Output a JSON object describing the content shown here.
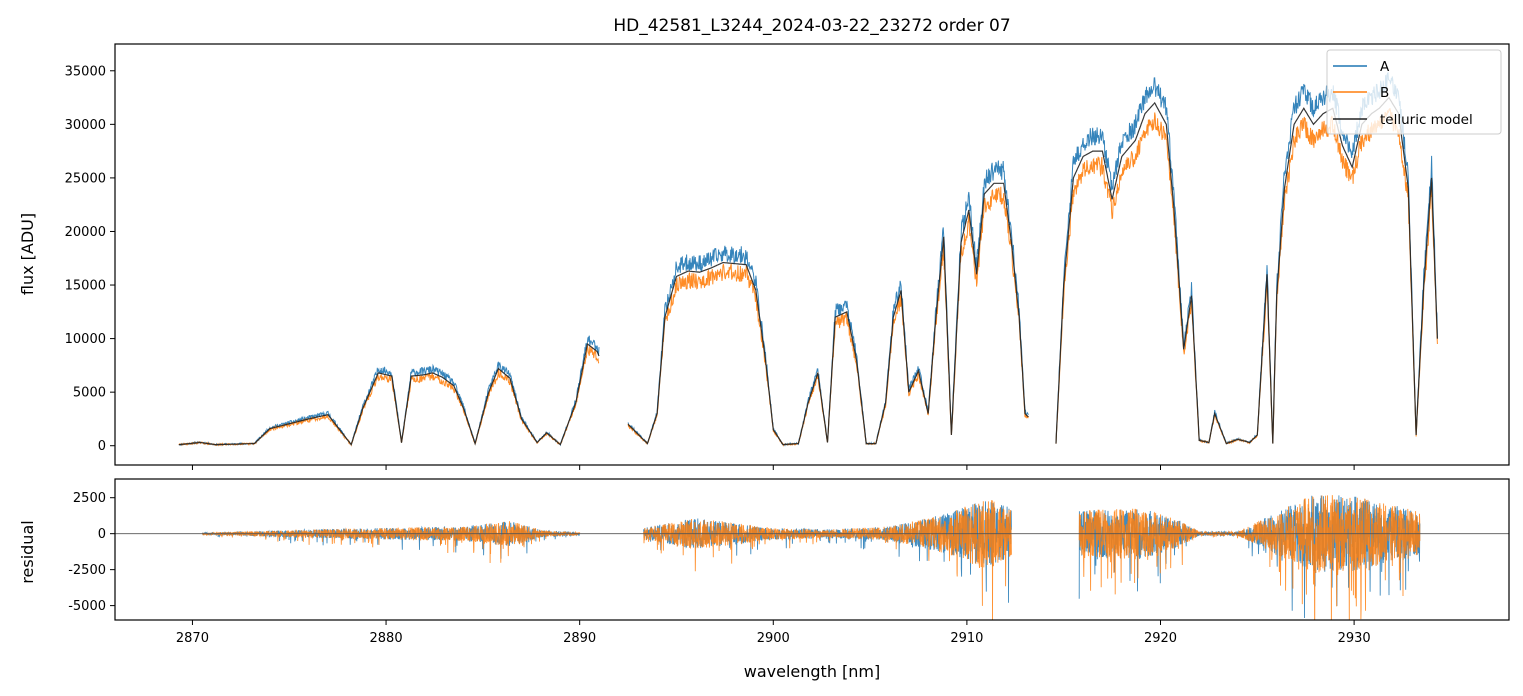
{
  "chart_data": [
    {
      "type": "line",
      "panel": "flux",
      "title": "HD_42581_L3244_2024-03-22_23272  order 07",
      "xlabel": "",
      "ylabel": "flux [ADU]",
      "xlim": [
        2866,
        2938
      ],
      "ylim": [
        -1800,
        37500
      ],
      "yticks": [
        0,
        5000,
        10000,
        15000,
        20000,
        25000,
        30000,
        35000
      ],
      "legend_position": "top-right",
      "gaps": [
        [
          2891.0,
          2892.5
        ],
        [
          2913.2,
          2914.6
        ]
      ],
      "series": [
        {
          "name": "telluric model",
          "color": "#222222",
          "points": [
            [
              2869.3,
              100
            ],
            [
              2870.4,
              300
            ],
            [
              2871.2,
              100
            ],
            [
              2873.2,
              200
            ],
            [
              2874.0,
              1600
            ],
            [
              2876.0,
              2500
            ],
            [
              2877.0,
              2900
            ],
            [
              2878.2,
              100
            ],
            [
              2878.8,
              3500
            ],
            [
              2879.6,
              6800
            ],
            [
              2880.3,
              6500
            ],
            [
              2880.8,
              300
            ],
            [
              2881.3,
              6500
            ],
            [
              2881.9,
              6600
            ],
            [
              2882.4,
              6800
            ],
            [
              2882.9,
              6400
            ],
            [
              2883.5,
              5600
            ],
            [
              2884.0,
              3500
            ],
            [
              2884.6,
              200
            ],
            [
              2885.3,
              5000
            ],
            [
              2885.8,
              7200
            ],
            [
              2886.4,
              6300
            ],
            [
              2887.0,
              2500
            ],
            [
              2887.8,
              300
            ],
            [
              2888.3,
              1200
            ],
            [
              2889.0,
              100
            ],
            [
              2889.8,
              4000
            ],
            [
              2890.4,
              9500
            ],
            [
              2890.9,
              8800
            ],
            [
              2892.5,
              2000
            ],
            [
              2893.5,
              200
            ],
            [
              2894.0,
              3000
            ],
            [
              2894.4,
              12000
            ],
            [
              2895.0,
              15800
            ],
            [
              2895.6,
              16300
            ],
            [
              2896.2,
              16200
            ],
            [
              2896.8,
              16600
            ],
            [
              2897.4,
              17100
            ],
            [
              2898.0,
              17000
            ],
            [
              2898.6,
              16900
            ],
            [
              2899.1,
              14500
            ],
            [
              2899.6,
              8000
            ],
            [
              2900.0,
              1500
            ],
            [
              2900.5,
              100
            ],
            [
              2901.3,
              200
            ],
            [
              2901.8,
              4000
            ],
            [
              2902.3,
              6800
            ],
            [
              2902.8,
              300
            ],
            [
              2903.2,
              12000
            ],
            [
              2903.8,
              12500
            ],
            [
              2904.3,
              8000
            ],
            [
              2904.8,
              200
            ],
            [
              2905.3,
              200
            ],
            [
              2905.8,
              4000
            ],
            [
              2906.2,
              12000
            ],
            [
              2906.6,
              14500
            ],
            [
              2907.0,
              5000
            ],
            [
              2907.5,
              7000
            ],
            [
              2908.0,
              3000
            ],
            [
              2908.4,
              12000
            ],
            [
              2908.8,
              19500
            ],
            [
              2909.2,
              1000
            ],
            [
              2909.7,
              19000
            ],
            [
              2910.1,
              22000
            ],
            [
              2910.5,
              16000
            ],
            [
              2910.9,
              23500
            ],
            [
              2911.4,
              24500
            ],
            [
              2911.9,
              24500
            ],
            [
              2912.3,
              19000
            ],
            [
              2912.7,
              12000
            ],
            [
              2913.0,
              3000
            ],
            [
              2914.6,
              200
            ],
            [
              2915.0,
              15000
            ],
            [
              2915.5,
              25000
            ],
            [
              2916.0,
              27000
            ],
            [
              2916.5,
              27500
            ],
            [
              2917.0,
              27500
            ],
            [
              2917.5,
              23000
            ],
            [
              2918.0,
              27000
            ],
            [
              2918.7,
              28500
            ],
            [
              2919.2,
              31000
            ],
            [
              2919.7,
              32000
            ],
            [
              2920.3,
              30000
            ],
            [
              2920.7,
              22000
            ],
            [
              2921.2,
              9000
            ],
            [
              2921.6,
              14000
            ],
            [
              2922.0,
              500
            ],
            [
              2922.5,
              300
            ],
            [
              2922.8,
              3000
            ],
            [
              2923.4,
              200
            ],
            [
              2924.0,
              600
            ],
            [
              2924.6,
              300
            ],
            [
              2925.0,
              1000
            ],
            [
              2925.5,
              16000
            ],
            [
              2925.8,
              200
            ],
            [
              2926.0,
              14000
            ],
            [
              2926.4,
              24000
            ],
            [
              2926.9,
              30000
            ],
            [
              2927.4,
              31500
            ],
            [
              2927.9,
              30000
            ],
            [
              2928.4,
              31000
            ],
            [
              2928.9,
              31500
            ],
            [
              2929.4,
              28000
            ],
            [
              2929.9,
              26000
            ],
            [
              2930.4,
              30000
            ],
            [
              2930.9,
              31000
            ],
            [
              2931.3,
              31500
            ],
            [
              2931.8,
              32500
            ],
            [
              2932.3,
              31000
            ],
            [
              2932.8,
              24000
            ],
            [
              2933.2,
              1000
            ],
            [
              2933.6,
              15000
            ],
            [
              2934.0,
              25000
            ],
            [
              2934.3,
              10000
            ]
          ]
        },
        {
          "name": "A",
          "color": "#1f77b4",
          "scale": 1.05,
          "noise": 900,
          "seed": 11
        },
        {
          "name": "B",
          "color": "#ff7f0e",
          "scale": 0.95,
          "noise": 900,
          "seed": 29
        }
      ]
    },
    {
      "type": "line",
      "panel": "residual",
      "xlabel": "wavelength [nm]",
      "ylabel": "residual",
      "xlim": [
        2866,
        2938
      ],
      "ylim": [
        -6000,
        3800
      ],
      "yticks": [
        -5000,
        -2500,
        0,
        2500
      ],
      "xticks": [
        2870,
        2880,
        2890,
        2900,
        2910,
        2920,
        2930
      ],
      "zero_line": true,
      "segments": [
        [
          2870.5,
          2890.0
        ],
        [
          2893.3,
          2912.3
        ],
        [
          2915.8,
          2933.4
        ]
      ],
      "series": [
        {
          "name": "A",
          "color": "#1f77b4",
          "seed": 5,
          "envelope": [
            [
              2870.5,
              60
            ],
            [
              2874,
              200
            ],
            [
              2877,
              320
            ],
            [
              2880,
              400
            ],
            [
              2884,
              500
            ],
            [
              2886.5,
              900
            ],
            [
              2888,
              250
            ],
            [
              2890,
              100
            ],
            [
              2893.3,
              400
            ],
            [
              2896,
              1100
            ],
            [
              2900,
              400
            ],
            [
              2903,
              300
            ],
            [
              2906,
              500
            ],
            [
              2909,
              1400
            ],
            [
              2911,
              2500
            ],
            [
              2912.3,
              1800
            ],
            [
              2915.8,
              1600
            ],
            [
              2919,
              1800
            ],
            [
              2921,
              900
            ],
            [
              2922,
              150
            ],
            [
              2924,
              150
            ],
            [
              2926,
              1500
            ],
            [
              2928,
              2800
            ],
            [
              2930,
              2600
            ],
            [
              2933.4,
              1600
            ]
          ]
        },
        {
          "name": "B",
          "color": "#ff7f0e",
          "seed": 17,
          "envelope": [
            [
              2870.5,
              60
            ],
            [
              2874,
              200
            ],
            [
              2877,
              320
            ],
            [
              2880,
              400
            ],
            [
              2884,
              500
            ],
            [
              2886.5,
              900
            ],
            [
              2888,
              250
            ],
            [
              2890,
              100
            ],
            [
              2893.3,
              400
            ],
            [
              2896,
              1100
            ],
            [
              2900,
              400
            ],
            [
              2903,
              300
            ],
            [
              2906,
              500
            ],
            [
              2909,
              1400
            ],
            [
              2911,
              2500
            ],
            [
              2912.3,
              1800
            ],
            [
              2915.8,
              1600
            ],
            [
              2919,
              1800
            ],
            [
              2921,
              900
            ],
            [
              2922,
              150
            ],
            [
              2924,
              150
            ],
            [
              2926,
              1500
            ],
            [
              2928,
              2800
            ],
            [
              2930,
              2600
            ],
            [
              2933.4,
              1600
            ]
          ]
        }
      ]
    }
  ]
}
